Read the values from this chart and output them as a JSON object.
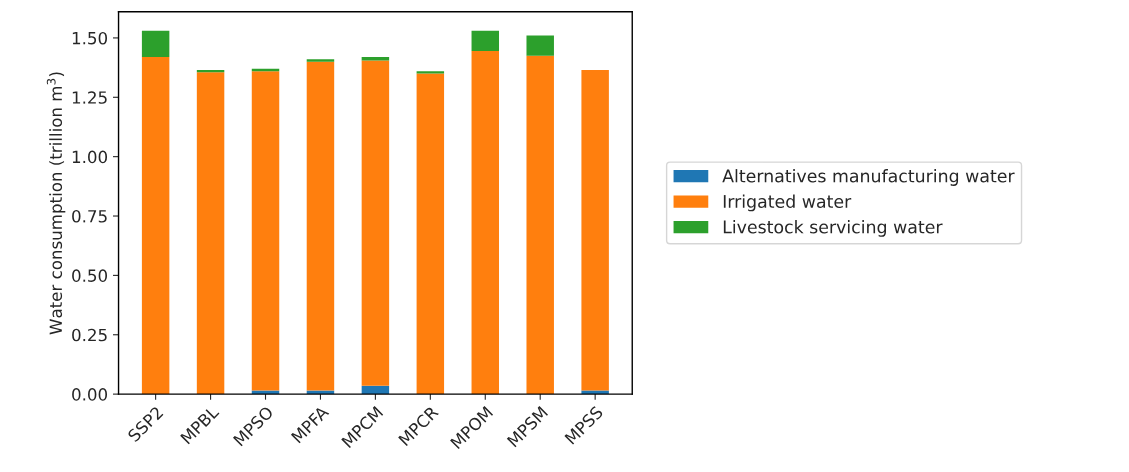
{
  "chart_data": {
    "type": "bar",
    "stacked": true,
    "ylabel": "Water consumption (trillion m$^{3}$)",
    "categories": [
      "SSP2",
      "MPBL",
      "MPSO",
      "MPFA",
      "MPCM",
      "MPCR",
      "MPOM",
      "MPSM",
      "MPSS"
    ],
    "series": [
      {
        "name": "Alternatives manufacturing water",
        "color": "#1f77b4",
        "values": [
          0,
          0,
          0.015,
          0.015,
          0.035,
          0,
          0,
          0,
          0.015
        ]
      },
      {
        "name": "Irrigated water",
        "color": "#ff7f0e",
        "values": [
          1.42,
          1.355,
          1.345,
          1.385,
          1.37,
          1.35,
          1.445,
          1.425,
          1.35
        ]
      },
      {
        "name": "Livestock servicing water",
        "color": "#2ca02c",
        "values": [
          0.11,
          0.01,
          0.01,
          0.01,
          0.015,
          0.01,
          0.085,
          0.085,
          0
        ]
      }
    ],
    "ylim": [
      0,
      1.61
    ],
    "yticks": [
      {
        "value": 0,
        "label": "0.00"
      },
      {
        "value": 0.25,
        "label": "0.25"
      },
      {
        "value": 0.5,
        "label": "0.50"
      },
      {
        "value": 0.75,
        "label": "0.75"
      },
      {
        "value": 1.0,
        "label": "1.00"
      },
      {
        "value": 1.25,
        "label": "1.25"
      },
      {
        "value": 1.5,
        "label": "1.50"
      }
    ],
    "grid": false,
    "legend": "right"
  }
}
